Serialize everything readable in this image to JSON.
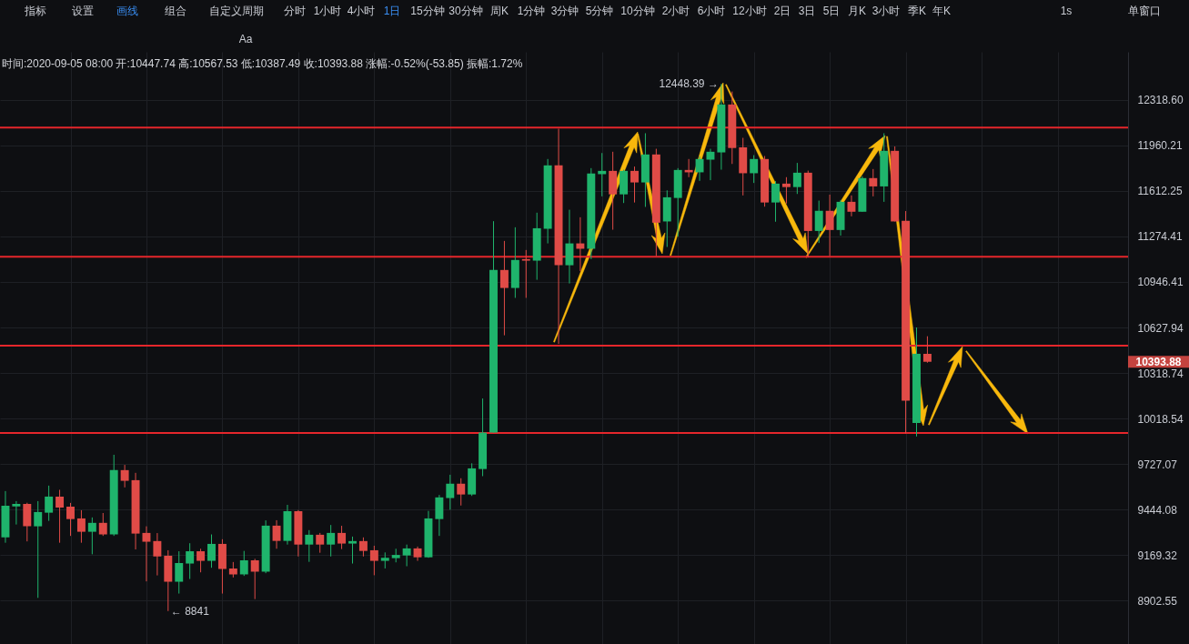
{
  "chart_data": {
    "type": "candlestick",
    "subtitle": "时间:2020-09-05 08:00 开:10447.74 高:10567.53 低:10387.49 收:10393.88 涨幅:-0.52%(-53.85) 振幅:1.72%",
    "annotations": [
      "指标",
      "设置",
      "画线",
      "组合",
      "自定义周期",
      "分时",
      "1小时",
      "4小时",
      "1日",
      "15分钟",
      "30分钟",
      "周K",
      "1分钟",
      "3分钟",
      "5分钟",
      "10分钟",
      "2小时",
      "6小时",
      "12小时",
      "2日",
      "3日",
      "5日",
      "月K",
      "3小时",
      "季K",
      "年K",
      "1s",
      "单窗口",
      "Aa",
      "12448.39 →",
      "← 8841",
      "10393.88"
    ],
    "categories": [
      null,
      null,
      null,
      null,
      null,
      null,
      null,
      null,
      null,
      null,
      null,
      null,
      null,
      null,
      null,
      null,
      null,
      null,
      null,
      null,
      null,
      null,
      null,
      null,
      null,
      null,
      null,
      null,
      null,
      null,
      null,
      null,
      null,
      null,
      null,
      null,
      null,
      null,
      null,
      null,
      null,
      null,
      null,
      null,
      null,
      null,
      null,
      null,
      null,
      null,
      null,
      null,
      null,
      null,
      null,
      null,
      null,
      null,
      null,
      null,
      null,
      null,
      null,
      null,
      null,
      null,
      null,
      null,
      null,
      null,
      null,
      null,
      null,
      null,
      null,
      null,
      null,
      null,
      null,
      null,
      null,
      null,
      null,
      null,
      null,
      null,
      null,
      null,
      null,
      null,
      null,
      null,
      null,
      null,
      null,
      null,
      null,
      null,
      null,
      null,
      null,
      null,
      null,
      null
    ],
    "ohlc": [
      [
        9275,
        9557,
        9242,
        9467
      ],
      [
        9463,
        9495,
        9352,
        9478
      ],
      [
        9478,
        9485,
        9250,
        9341
      ],
      [
        9341,
        9495,
        8917,
        9428
      ],
      [
        9424,
        9591,
        9374,
        9523
      ],
      [
        9523,
        9565,
        9242,
        9455
      ],
      [
        9461,
        9484,
        9283,
        9385
      ],
      [
        9389,
        9439,
        9242,
        9308
      ],
      [
        9308,
        9395,
        9173,
        9362
      ],
      [
        9362,
        9422,
        9283,
        9292
      ],
      [
        9292,
        9785,
        9283,
        9688
      ],
      [
        9688,
        9721,
        9580,
        9621
      ],
      [
        9625,
        9671,
        9202,
        9297
      ],
      [
        9301,
        9341,
        9013,
        9248
      ],
      [
        9252,
        9300,
        9048,
        9160
      ],
      [
        9164,
        9197,
        8841,
        9011
      ],
      [
        9011,
        9191,
        8942,
        9121
      ],
      [
        9118,
        9239,
        9027,
        9191
      ],
      [
        9191,
        9206,
        9066,
        9134
      ],
      [
        9134,
        9292,
        9093,
        9235
      ],
      [
        9235,
        9263,
        8942,
        9086
      ],
      [
        9089,
        9127,
        9036,
        9054
      ],
      [
        9054,
        9193,
        9045,
        9137
      ],
      [
        9137,
        9146,
        8910,
        9070
      ],
      [
        9070,
        9377,
        9061,
        9345
      ],
      [
        9345,
        9378,
        9206,
        9253
      ],
      [
        9253,
        9472,
        9231,
        9433
      ],
      [
        9433,
        9440,
        9160,
        9231
      ],
      [
        9231,
        9318,
        9128,
        9290
      ],
      [
        9290,
        9301,
        9182,
        9231
      ],
      [
        9231,
        9349,
        9160,
        9301
      ],
      [
        9301,
        9344,
        9204,
        9237
      ],
      [
        9237,
        9279,
        9118,
        9252
      ],
      [
        9252,
        9274,
        9160,
        9193
      ],
      [
        9197,
        9224,
        9049,
        9134
      ],
      [
        9134,
        9184,
        9089,
        9152
      ],
      [
        9150,
        9206,
        9125,
        9169
      ],
      [
        9166,
        9231,
        9102,
        9208
      ],
      [
        9208,
        9219,
        9134,
        9155
      ],
      [
        9155,
        9435,
        9152,
        9389
      ],
      [
        9385,
        9533,
        9283,
        9518
      ],
      [
        9514,
        9659,
        9442,
        9603
      ],
      [
        9603,
        9637,
        9468,
        9536
      ],
      [
        9536,
        9731,
        9527,
        9699
      ],
      [
        9695,
        10149,
        9650,
        9927
      ],
      [
        9927,
        11387,
        9927,
        11032
      ],
      [
        11032,
        11242,
        10574,
        10904
      ],
      [
        10904,
        11342,
        10834,
        11104
      ],
      [
        11110,
        11176,
        10834,
        11099
      ],
      [
        11099,
        11450,
        10962,
        11335
      ],
      [
        11331,
        11856,
        11224,
        11807
      ],
      [
        11807,
        12091,
        10515,
        11066
      ],
      [
        11066,
        11472,
        10936,
        11224
      ],
      [
        11224,
        11416,
        11023,
        11185
      ],
      [
        11185,
        11786,
        11110,
        11745
      ],
      [
        11740,
        11902,
        11572,
        11765
      ],
      [
        11765,
        11912,
        11324,
        11587
      ],
      [
        11587,
        11774,
        11522,
        11765
      ],
      [
        11765,
        11798,
        11526,
        11677
      ],
      [
        11677,
        12056,
        11493,
        11891
      ],
      [
        11891,
        11935,
        11132,
        11376
      ],
      [
        11385,
        11617,
        11198,
        11565
      ],
      [
        11560,
        11786,
        11274,
        11772
      ],
      [
        11772,
        11856,
        11717,
        11754
      ],
      [
        11754,
        11875,
        11689,
        11856
      ],
      [
        11851,
        11935,
        11694,
        11912
      ],
      [
        11907,
        12448.39,
        11774,
        12283
      ],
      [
        12283,
        12387,
        11818,
        11941
      ],
      [
        11946,
        12020,
        11579,
        11747
      ],
      [
        11747,
        11886,
        11673,
        11856
      ],
      [
        11856,
        11879,
        11495,
        11526
      ],
      [
        11526,
        11687,
        11383,
        11668
      ],
      [
        11668,
        11717,
        11518,
        11642
      ],
      [
        11642,
        11826,
        11590,
        11751
      ],
      [
        11751,
        11767,
        11122,
        11315
      ],
      [
        11315,
        11540,
        11227,
        11464
      ],
      [
        11464,
        11585,
        11132,
        11322
      ],
      [
        11322,
        11545,
        11281,
        11531
      ],
      [
        11531,
        11579,
        11423,
        11457
      ],
      [
        11457,
        11724,
        11457,
        11710
      ],
      [
        11710,
        11779,
        11572,
        11647
      ],
      [
        11647,
        12056,
        11531,
        11919
      ],
      [
        11919,
        11953,
        11385,
        11385
      ],
      [
        11389,
        11462,
        9921,
        10134
      ],
      [
        9989,
        10628,
        9902,
        10448
      ],
      [
        10447.74,
        10567.53,
        10387.49,
        10393.88
      ],
      null,
      null,
      null,
      null,
      null,
      null,
      null,
      null,
      null,
      null,
      null,
      null,
      null,
      null,
      null,
      null,
      null,
      null
    ],
    "colors": [
      "#1fb46c",
      "#1fb46c",
      "#e04b47",
      "#1fb46c",
      "#1fb46c",
      "#e04b47",
      "#e04b47",
      "#e04b47",
      "#1fb46c",
      "#e04b47",
      "#1fb46c",
      "#e04b47",
      "#e04b47",
      "#e04b47",
      "#e04b47",
      "#e04b47",
      "#1fb46c",
      "#1fb46c",
      "#e04b47",
      "#1fb46c",
      "#e04b47",
      "#e04b47",
      "#1fb46c",
      "#e04b47",
      "#1fb46c",
      "#e04b47",
      "#1fb46c",
      "#e04b47",
      "#1fb46c",
      "#e04b47",
      "#1fb46c",
      "#e04b47",
      "#1fb46c",
      "#e04b47",
      "#e04b47",
      "#1fb46c",
      "#1fb46c",
      "#1fb46c",
      "#e04b47",
      "#1fb46c",
      "#1fb46c",
      "#1fb46c",
      "#e04b47",
      "#1fb46c",
      "#1fb46c",
      "#1fb46c",
      "#e04b47",
      "#1fb46c",
      "#e04b47",
      "#1fb46c",
      "#1fb46c",
      "#e04b47",
      "#1fb46c",
      "#e04b47",
      "#1fb46c",
      "#1fb46c",
      "#e04b47",
      "#1fb46c",
      "#e04b47",
      "#1fb46c",
      "#e04b47",
      "#1fb46c",
      "#1fb46c",
      "#e04b47",
      "#1fb46c",
      "#1fb46c",
      "#1fb46c",
      "#e04b47",
      "#e04b47",
      "#1fb46c",
      "#e04b47",
      "#1fb46c",
      "#e04b47",
      "#1fb46c",
      "#e04b47",
      "#1fb46c",
      "#e04b47",
      "#1fb46c",
      "#e04b47",
      "#1fb46c",
      "#e04b47",
      "#1fb46c",
      "#e04b47",
      "#e04b47",
      "#1fb46c",
      "#e04b47",
      null,
      null,
      null,
      null,
      null,
      null,
      null,
      null,
      null,
      null,
      null,
      null,
      null,
      null,
      null,
      null,
      null,
      null
    ],
    "ylim": [
      8654,
      12710
    ],
    "yticks": [
      {
        "value": 12318.6,
        "label": "12318.60"
      },
      11960.21,
      11612.25,
      11274.41,
      10946.41,
      10627.94,
      10318.74,
      10018.54,
      9727.07,
      9444.08,
      9169.32,
      8902.55
    ],
    "log": true,
    "grid": true,
    "tick_labels": "y",
    "ref_lines": [
      {
        "axis": "y",
        "value": 12100,
        "color": "#e5262b"
      },
      {
        "axis": "y",
        "value": 11128,
        "color": "#e5262b"
      },
      {
        "axis": "y",
        "value": 10503,
        "color": "#e5262b"
      },
      {
        "axis": "y",
        "value": 9924,
        "color": "#e5262b"
      }
    ]
  }
}
